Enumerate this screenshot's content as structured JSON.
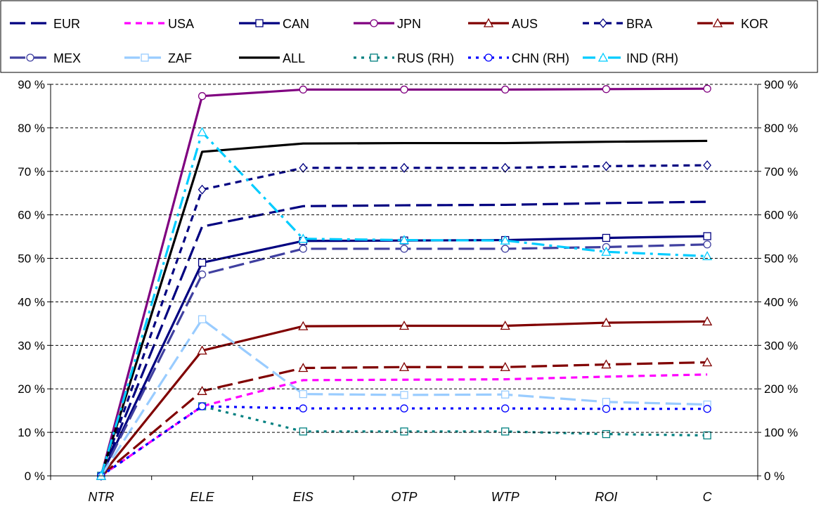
{
  "chart_data": {
    "type": "line",
    "categories": [
      "NTR",
      "ELE",
      "EIS",
      "OTP",
      "WTP",
      "ROI",
      "C"
    ],
    "y_left": {
      "ticks": [
        "0 %",
        "10 %",
        "20 %",
        "30 %",
        "40 %",
        "50 %",
        "60 %",
        "70 %",
        "80 %",
        "90 %"
      ],
      "ylim": [
        0,
        90
      ]
    },
    "y_right": {
      "ticks": [
        "0 %",
        "100 %",
        "200 %",
        "300 %",
        "400 %",
        "500 %",
        "600 %",
        "700 %",
        "800 %",
        "900 %"
      ],
      "ylim": [
        0,
        900
      ]
    },
    "grid": true,
    "legend_position": "top",
    "series": [
      {
        "name": "EUR",
        "axis": "left",
        "color": "#000080",
        "dash": "longdash",
        "marker": "none",
        "values": [
          0,
          57.3,
          62.0,
          62.2,
          62.3,
          62.7,
          63.0
        ]
      },
      {
        "name": "USA",
        "axis": "left",
        "color": "#ff00ff",
        "dash": "dash",
        "marker": "none",
        "values": [
          0,
          16.0,
          22.0,
          22.1,
          22.2,
          22.8,
          23.3
        ]
      },
      {
        "name": "CAN",
        "axis": "left",
        "color": "#000080",
        "dash": "solid",
        "marker": "square",
        "values": [
          0,
          49.0,
          54.0,
          54.1,
          54.2,
          54.7,
          55.1
        ]
      },
      {
        "name": "JPN",
        "axis": "left",
        "color": "#800080",
        "dash": "solid",
        "marker": "circle",
        "values": [
          0,
          87.3,
          88.8,
          88.8,
          88.8,
          88.9,
          89.0
        ]
      },
      {
        "name": "AUS",
        "axis": "left",
        "color": "#800000",
        "dash": "solid",
        "marker": "triangle",
        "values": [
          0,
          28.8,
          34.4,
          34.5,
          34.5,
          35.2,
          35.5
        ]
      },
      {
        "name": "BRA",
        "axis": "left",
        "color": "#000080",
        "dash": "dash",
        "marker": "diamond",
        "values": [
          0,
          65.8,
          70.8,
          70.8,
          70.8,
          71.2,
          71.4
        ]
      },
      {
        "name": "KOR",
        "axis": "left",
        "color": "#800000",
        "dash": "longdash",
        "marker": "triangle",
        "values": [
          0,
          19.5,
          24.8,
          25.0,
          25.0,
          25.6,
          26.1
        ]
      },
      {
        "name": "MEX",
        "axis": "left",
        "color": "#4040a0",
        "dash": "longdash",
        "marker": "circle",
        "values": [
          0,
          46.3,
          52.2,
          52.2,
          52.2,
          52.6,
          53.2
        ]
      },
      {
        "name": "ZAF",
        "axis": "left",
        "color": "#99ccff",
        "dash": "longdash",
        "marker": "square",
        "values": [
          0,
          36.0,
          18.8,
          18.6,
          18.7,
          17.0,
          16.4
        ]
      },
      {
        "name": "ALL",
        "axis": "left",
        "color": "#000000",
        "dash": "solid",
        "marker": "none",
        "values": [
          0,
          74.5,
          76.4,
          76.5,
          76.5,
          76.8,
          77.0
        ]
      },
      {
        "name": "RUS (RH)",
        "axis": "right",
        "color": "#008080",
        "dash": "dot",
        "marker": "square",
        "values": [
          0,
          160,
          102,
          102,
          102,
          96,
          93
        ]
      },
      {
        "name": "CHN (RH)",
        "axis": "right",
        "color": "#0000ff",
        "dash": "dot",
        "marker": "circle",
        "values": [
          0,
          160,
          155,
          155,
          155,
          154,
          154
        ]
      },
      {
        "name": "IND (RH)",
        "axis": "right",
        "color": "#00ccff",
        "dash": "dashdot",
        "marker": "triangle",
        "values": [
          0,
          790,
          545,
          542,
          541,
          515,
          505
        ]
      }
    ]
  }
}
